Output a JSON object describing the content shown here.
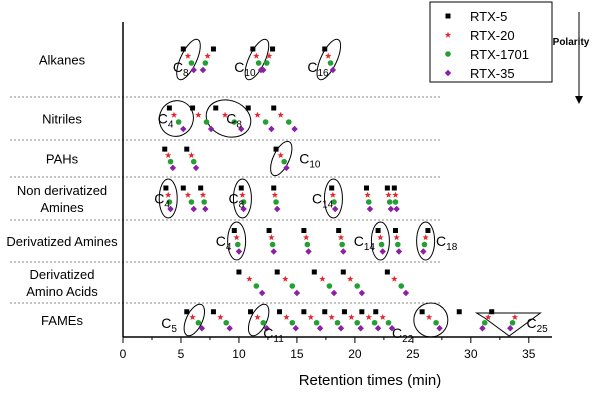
{
  "chart_data": {
    "type": "scatter",
    "title": "",
    "xlabel": "Retention times (min)",
    "ylabel": "",
    "xlim": [
      0,
      37
    ],
    "xticks": [
      0,
      5,
      10,
      15,
      20,
      25,
      30,
      35
    ],
    "legend_title": "Polarity",
    "legend_placement": "top-right",
    "grid": false,
    "series": [
      {
        "name": "RTX-5",
        "color": "#000000",
        "marker": "square"
      },
      {
        "name": "RTX-20",
        "color": "#e6262b",
        "marker": "star"
      },
      {
        "name": "RTX-1701",
        "color": "#22a033",
        "marker": "circle"
      },
      {
        "name": "RTX-35",
        "color": "#8b1fa6",
        "marker": "diamond"
      }
    ],
    "rows": [
      {
        "category": "Alkanes",
        "label_lines": [
          "Alkanes"
        ],
        "points": [
          [
            [
              5.2,
              5.6,
              5.9,
              6.1
            ],
            [
              7.8,
              7.3,
              7.1,
              6.9
            ],
            [
              11.2,
              11.5,
              11.7,
              11.9
            ],
            [
              12.9,
              12.6,
              12.4,
              12.1
            ],
            [
              17.4,
              17.7,
              17.9,
              18.1
            ]
          ]
        ],
        "annotations": [
          {
            "label": "C",
            "sub": "8",
            "x": 4.3
          },
          {
            "label": "C",
            "sub": "10",
            "x": 9.6
          },
          {
            "label": "C",
            "sub": "16",
            "x": 15.9
          }
        ]
      },
      {
        "category": "Nitriles",
        "label_lines": [
          "Nitriles"
        ],
        "points": [
          [
            [
              4.0,
              4.4,
              4.8,
              5.2
            ],
            [
              6.0,
              6.5,
              7.2,
              7.6
            ],
            [
              8.0,
              8.8,
              9.6,
              10.2
            ],
            [
              10.8,
              11.6,
              12.3,
              12.8
            ],
            [
              13.0,
              13.6,
              14.3,
              14.8
            ]
          ]
        ],
        "annotations": [
          {
            "label": "C",
            "sub": "4",
            "x": 3.0
          },
          {
            "label": "C",
            "sub": "8",
            "x": 8.9
          }
        ]
      },
      {
        "category": "PAHs",
        "label_lines": [
          "PAHs"
        ],
        "points": [
          [
            [
              3.6,
              3.9,
              4.1,
              4.3
            ],
            [
              5.5,
              5.9,
              6.1,
              6.3
            ],
            [
              13.2,
              13.6,
              13.9,
              14.1
            ]
          ]
        ],
        "annotations": [
          {
            "label": "C",
            "sub": "10",
            "x": 15.2
          }
        ]
      },
      {
        "category": "Non derivatized Amines",
        "label_lines": [
          "Non derivatized",
          "Amines"
        ],
        "points": [
          [
            [
              3.7,
              3.9,
              4.0,
              4.1
            ],
            [
              5.2,
              5.6,
              5.9,
              6.1
            ],
            [
              6.7,
              6.9,
              7.0,
              7.1
            ],
            [
              10.2,
              10.3,
              10.4,
              10.4
            ],
            [
              13.0,
              13.1,
              13.2,
              13.3
            ],
            [
              18.0,
              18.1,
              18.2,
              18.3
            ],
            [
              21.0,
              21.1,
              21.2,
              21.3
            ],
            [
              22.8,
              22.9,
              23.0,
              23.1
            ],
            [
              23.4,
              23.5,
              23.5,
              23.6
            ]
          ]
        ],
        "annotations": [
          {
            "label": "C",
            "sub": "4",
            "x": 2.7
          },
          {
            "label": "C",
            "sub": "8",
            "x": 9.1
          },
          {
            "label": "C",
            "sub": "14",
            "x": 16.3
          }
        ]
      },
      {
        "category": "Derivatized Amines",
        "label_lines": [
          "Derivatized Amines"
        ],
        "points": [
          [
            [
              9.6,
              9.8,
              9.9,
              10.0
            ],
            [
              12.6,
              12.8,
              12.9,
              13.0
            ],
            [
              15.6,
              15.8,
              15.9,
              16.0
            ],
            [
              18.6,
              18.8,
              18.9,
              19.0
            ],
            [
              22.0,
              22.2,
              22.3,
              22.4
            ],
            [
              23.5,
              23.6,
              23.7,
              23.8
            ],
            [
              26.3,
              26.1,
              26.0,
              25.9
            ]
          ]
        ],
        "annotations": [
          {
            "label": "C",
            "sub": "4",
            "x": 8.0
          },
          {
            "label": "C",
            "sub": "14",
            "x": 19.9
          },
          {
            "label": "C",
            "sub": "18",
            "x": 27.0
          }
        ]
      },
      {
        "category": "Derivatized Amino Acids",
        "label_lines": [
          "Derivatized",
          "Amino Acids"
        ],
        "points": [
          [
            [
              10.0,
              10.9,
              11.5,
              12.0
            ],
            [
              13.3,
              14.0,
              14.6,
              15.0
            ],
            [
              16.5,
              17.2,
              17.8,
              18.2
            ],
            [
              19.0,
              19.6,
              20.2,
              20.6
            ],
            [
              22.8,
              23.4,
              24.0,
              24.4
            ]
          ]
        ],
        "annotations": []
      },
      {
        "category": "FAMEs",
        "label_lines": [
          "FAMEs"
        ],
        "points": [
          [
            [
              5.5,
              6.0,
              6.5,
              6.8
            ],
            [
              7.8,
              8.4,
              8.9,
              9.2
            ],
            [
              11.0,
              11.6,
              12.1,
              12.4
            ],
            [
              13.5,
              14.1,
              14.6,
              14.9
            ],
            [
              15.6,
              16.2,
              16.7,
              17.0
            ],
            [
              17.4,
              18.0,
              18.5,
              18.8
            ],
            [
              19.1,
              19.7,
              20.2,
              20.5
            ],
            [
              20.6,
              21.2,
              21.7,
              22.0
            ],
            [
              21.8,
              22.4,
              22.9,
              23.2
            ],
            [
              25.8,
              26.4,
              27.0,
              27.3
            ],
            [
              29.0,
              31.5,
              31.2,
              31.0
            ],
            [
              31.8,
              33.8,
              33.6,
              33.4
            ]
          ]
        ],
        "annotations": [
          {
            "label": "C",
            "sub": "5",
            "x": 3.3
          },
          {
            "label": "C",
            "sub": "11",
            "x": 12.1
          },
          {
            "label": "C",
            "sub": "22",
            "x": 23.2
          },
          {
            "label": "C",
            "sub": "25",
            "x": 34.8
          }
        ]
      }
    ]
  }
}
